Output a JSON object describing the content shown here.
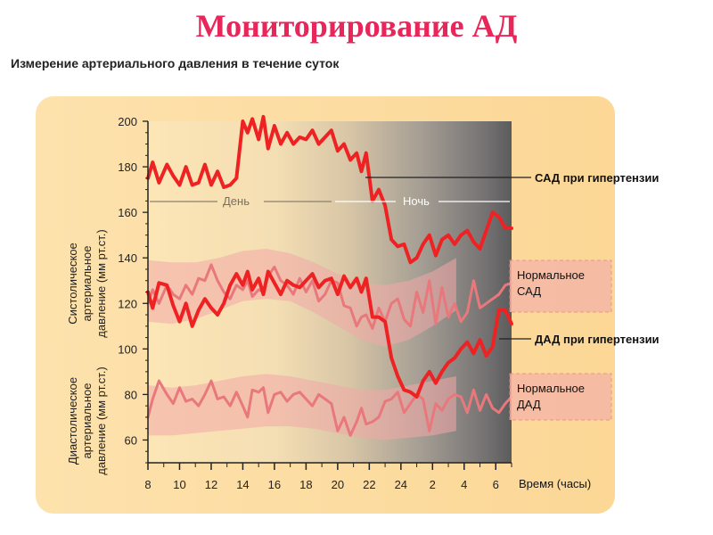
{
  "slide": {
    "title": "Мониторирование АД"
  },
  "chart_data": {
    "type": "line",
    "title": "Измерение артериального давления в течение суток",
    "xlabel": "Время (часы)",
    "x_ticks": [
      "8",
      "10",
      "12",
      "14",
      "16",
      "18",
      "20",
      "22",
      "24",
      "2",
      "4",
      "6"
    ],
    "x_range_hours": [
      8,
      31
    ],
    "ylim": [
      50,
      200
    ],
    "y_ticks": [
      60,
      80,
      100,
      120,
      140,
      160,
      180,
      200
    ],
    "ylabel_upper": [
      "Систолическое",
      "артериальное",
      "давление (мм рт.ст.)"
    ],
    "ylabel_lower": [
      "Диастолическое",
      "артериальное",
      "давление (мм рт.ст.)"
    ],
    "period_labels": {
      "day": "День",
      "night": "Ночь"
    },
    "colors": {
      "hypertension": "#ee2222",
      "normal": "#e8787c",
      "normal_band": "#f2a7a7",
      "panel": "#fcd89c",
      "title": "#e8265a"
    },
    "series": [
      {
        "name": "САД при гипертензии",
        "x": [
          8,
          8.3,
          8.7,
          9.2,
          9.6,
          10,
          10.4,
          10.8,
          11.2,
          11.6,
          12,
          12.4,
          12.8,
          13.2,
          13.6,
          14,
          14.3,
          14.6,
          15,
          15.3,
          15.6,
          16,
          16.4,
          16.8,
          17.2,
          17.6,
          18,
          18.4,
          18.8,
          19.2,
          19.6,
          20,
          20.4,
          20.8,
          21.2,
          21.5,
          21.8,
          22.2,
          22.6,
          23,
          23.4,
          23.8,
          24.2,
          24.6,
          25,
          25.4,
          25.8,
          26.2,
          26.6,
          27,
          27.4,
          27.8,
          28.2,
          28.6,
          29,
          29.4,
          29.8,
          30.2,
          30.6,
          31
        ],
        "values": [
          175,
          182,
          173,
          181,
          176,
          172,
          180,
          172,
          173,
          181,
          172,
          178,
          171,
          172,
          175,
          200,
          195,
          201,
          192,
          202,
          188,
          198,
          190,
          195,
          190,
          193,
          192,
          196,
          190,
          193,
          196,
          187,
          190,
          183,
          186,
          178,
          186,
          165,
          170,
          163,
          148,
          145,
          146,
          138,
          140,
          146,
          150,
          141,
          148,
          150,
          146,
          150,
          152,
          147,
          144,
          152,
          160,
          158,
          153,
          153
        ]
      },
      {
        "name": "Нормальное САД",
        "x": [
          8,
          8.3,
          8.7,
          9.2,
          9.6,
          10,
          10.4,
          10.8,
          11.2,
          11.6,
          12,
          12.4,
          12.8,
          13.2,
          13.6,
          14,
          14.3,
          14.6,
          15,
          15.3,
          15.6,
          16,
          16.4,
          16.8,
          17.2,
          17.6,
          18,
          18.4,
          18.8,
          19.2,
          19.6,
          20,
          20.4,
          20.8,
          21.2,
          21.5,
          21.8,
          22.2,
          22.6,
          23,
          23.4,
          23.8,
          24.2,
          24.6,
          25,
          25.4,
          25.8,
          26.2,
          26.6,
          27,
          27.4,
          27.8,
          28.2,
          28.6,
          29,
          29.4,
          29.8,
          30.2,
          30.6,
          31
        ],
        "values": [
          120,
          126,
          120,
          128,
          124,
          122,
          128,
          124,
          131,
          130,
          137,
          130,
          125,
          122,
          128,
          126,
          130,
          123,
          126,
          125,
          132,
          136,
          130,
          128,
          124,
          131,
          125,
          130,
          121,
          124,
          130,
          129,
          119,
          118,
          110,
          114,
          115,
          109,
          118,
          112,
          120,
          122,
          113,
          110,
          125,
          116,
          130,
          111,
          127,
          114,
          120,
          112,
          116,
          130,
          118,
          120,
          122,
          124,
          128,
          129
        ]
      },
      {
        "name": "ДАД при гипертензии",
        "x": [
          8,
          8.3,
          8.7,
          9.2,
          9.6,
          10,
          10.4,
          10.8,
          11.2,
          11.6,
          12,
          12.4,
          12.8,
          13.2,
          13.6,
          14,
          14.3,
          14.6,
          15,
          15.3,
          15.6,
          16,
          16.4,
          16.8,
          17.2,
          17.6,
          18,
          18.4,
          18.8,
          19.2,
          19.6,
          20,
          20.4,
          20.8,
          21.2,
          21.5,
          21.8,
          22.2,
          22.6,
          23,
          23.4,
          23.8,
          24.2,
          24.6,
          25,
          25.4,
          25.8,
          26.2,
          26.6,
          27,
          27.4,
          27.8,
          28.2,
          28.6,
          29,
          29.4,
          29.8,
          30.2,
          30.6,
          31
        ],
        "values": [
          125,
          118,
          129,
          128,
          119,
          112,
          120,
          110,
          117,
          122,
          118,
          115,
          120,
          128,
          133,
          128,
          134,
          126,
          131,
          124,
          134,
          129,
          124,
          130,
          128,
          127,
          130,
          133,
          127,
          130,
          131,
          124,
          132,
          127,
          131,
          125,
          131,
          114,
          114,
          112,
          96,
          88,
          82,
          81,
          79,
          86,
          90,
          85,
          90,
          94,
          96,
          100,
          103,
          98,
          104,
          97,
          101,
          117,
          117,
          111
        ]
      },
      {
        "name": "Нормальное ДАД",
        "x": [
          8,
          8.3,
          8.7,
          9.2,
          9.6,
          10,
          10.4,
          10.8,
          11.2,
          11.6,
          12,
          12.4,
          12.8,
          13.2,
          13.6,
          14,
          14.3,
          14.6,
          15,
          15.3,
          15.6,
          16,
          16.4,
          16.8,
          17.2,
          17.6,
          18,
          18.4,
          18.8,
          19.2,
          19.6,
          20,
          20.4,
          20.8,
          21.2,
          21.5,
          21.8,
          22.2,
          22.6,
          23,
          23.4,
          23.8,
          24.2,
          24.6,
          25,
          25.4,
          25.8,
          26.2,
          26.6,
          27,
          27.4,
          27.8,
          28.2,
          28.6,
          29,
          29.4,
          29.8,
          30.2,
          30.6,
          31
        ],
        "values": [
          70,
          78,
          86,
          80,
          76,
          83,
          77,
          78,
          75,
          80,
          86,
          78,
          79,
          75,
          81,
          75,
          70,
          82,
          81,
          83,
          72,
          80,
          81,
          77,
          80,
          81,
          78,
          75,
          80,
          78,
          76,
          64,
          70,
          62,
          68,
          74,
          67,
          68,
          70,
          77,
          78,
          81,
          72,
          76,
          80,
          78,
          64,
          76,
          73,
          78,
          80,
          79,
          72,
          82,
          73,
          80,
          74,
          72,
          76,
          79
        ]
      }
    ],
    "normal_bands": [
      {
        "name": "Нормальное САД",
        "lower": [
          112,
          111,
          113,
          117,
          121,
          122,
          121,
          116,
          110,
          104,
          101,
          104,
          110,
          117
        ],
        "upper": [
          139,
          138,
          138,
          140,
          143,
          144,
          142,
          138,
          133,
          129,
          128,
          130,
          134,
          140
        ],
        "x": [
          8,
          9.5,
          11,
          12.5,
          14,
          15.5,
          17,
          18.5,
          20,
          21.5,
          23,
          24.5,
          26,
          27.5
        ]
      },
      {
        "name": "Нормальное ДАД",
        "lower": [
          62,
          62,
          63,
          64,
          65,
          66,
          66,
          65,
          63,
          61,
          60,
          61,
          62,
          64
        ],
        "upper": [
          84,
          83,
          84,
          86,
          88,
          89,
          88,
          86,
          84,
          82,
          82,
          84,
          86,
          88
        ],
        "x": [
          8,
          9.5,
          11,
          12.5,
          14,
          15.5,
          17,
          18.5,
          20,
          21.5,
          23,
          24.5,
          26,
          27.5
        ]
      }
    ],
    "callouts": {
      "sad_hyper": "САД при гипертензии",
      "normal_sad": [
        "Нормальное",
        "САД"
      ],
      "dad_hyper": "ДАД при гипертензии",
      "normal_dad": [
        "Нормальное",
        "ДАД"
      ]
    },
    "grid": false,
    "legend": "right"
  }
}
